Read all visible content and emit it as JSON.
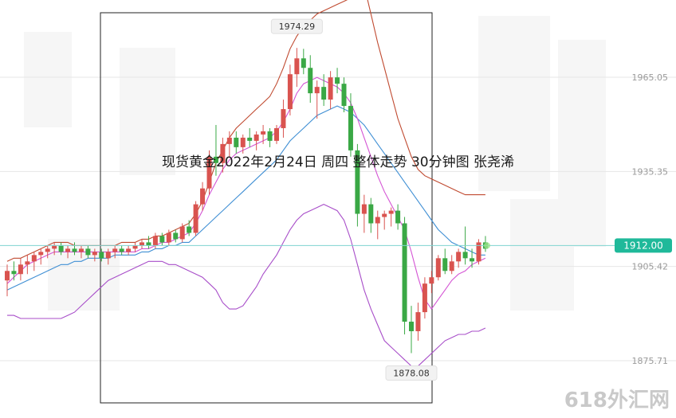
{
  "chart_data": {
    "type": "candlestick",
    "title": "现货黄金2022年2月24日 周四  整体走势 30分钟图  张尧浠",
    "ylim": [
      1868,
      1985
    ],
    "y_ticks": [
      {
        "value": 1965.05,
        "label": "1965.05"
      },
      {
        "value": 1935.35,
        "label": "1935.35"
      },
      {
        "value": 1905.42,
        "label": "1905.42"
      },
      {
        "value": 1875.71,
        "label": "1875.71"
      }
    ],
    "current_price": {
      "value": 1912.0,
      "label": "1912.00"
    },
    "annotations": [
      {
        "text": "1974.29",
        "value": 1974.29,
        "kind": "high"
      },
      {
        "text": "1878.08",
        "value": 1878.08,
        "kind": "low"
      }
    ],
    "candles": [
      {
        "o": 1901,
        "h": 1906,
        "l": 1896,
        "c": 1904
      },
      {
        "o": 1904,
        "h": 1907,
        "l": 1901,
        "c": 1903
      },
      {
        "o": 1903,
        "h": 1908,
        "l": 1901,
        "c": 1906
      },
      {
        "o": 1906,
        "h": 1909,
        "l": 1903,
        "c": 1907
      },
      {
        "o": 1907,
        "h": 1910,
        "l": 1904,
        "c": 1909
      },
      {
        "o": 1909,
        "h": 1911,
        "l": 1906,
        "c": 1910
      },
      {
        "o": 1910,
        "h": 1912,
        "l": 1908,
        "c": 1911
      },
      {
        "o": 1911,
        "h": 1913,
        "l": 1909,
        "c": 1912
      },
      {
        "o": 1912,
        "h": 1913,
        "l": 1909,
        "c": 1910
      },
      {
        "o": 1910,
        "h": 1912,
        "l": 1908,
        "c": 1911
      },
      {
        "o": 1911,
        "h": 1913,
        "l": 1909,
        "c": 1910
      },
      {
        "o": 1910,
        "h": 1912,
        "l": 1908,
        "c": 1911
      },
      {
        "o": 1911,
        "h": 1912,
        "l": 1908,
        "c": 1909
      },
      {
        "o": 1909,
        "h": 1911,
        "l": 1907,
        "c": 1910
      },
      {
        "o": 1910,
        "h": 1911,
        "l": 1907,
        "c": 1908
      },
      {
        "o": 1908,
        "h": 1911,
        "l": 1906,
        "c": 1910
      },
      {
        "o": 1910,
        "h": 1912,
        "l": 1908,
        "c": 1911
      },
      {
        "o": 1911,
        "h": 1912,
        "l": 1909,
        "c": 1910
      },
      {
        "o": 1910,
        "h": 1912,
        "l": 1909,
        "c": 1911
      },
      {
        "o": 1911,
        "h": 1913,
        "l": 1910,
        "c": 1912
      },
      {
        "o": 1912,
        "h": 1914,
        "l": 1911,
        "c": 1913
      },
      {
        "o": 1913,
        "h": 1915,
        "l": 1911,
        "c": 1912
      },
      {
        "o": 1912,
        "h": 1916,
        "l": 1911,
        "c": 1915
      },
      {
        "o": 1915,
        "h": 1916,
        "l": 1912,
        "c": 1913
      },
      {
        "o": 1913,
        "h": 1917,
        "l": 1912,
        "c": 1916
      },
      {
        "o": 1916,
        "h": 1917,
        "l": 1913,
        "c": 1914
      },
      {
        "o": 1914,
        "h": 1919,
        "l": 1913,
        "c": 1918
      },
      {
        "o": 1918,
        "h": 1920,
        "l": 1915,
        "c": 1916
      },
      {
        "o": 1916,
        "h": 1926,
        "l": 1915,
        "c": 1925
      },
      {
        "o": 1925,
        "h": 1932,
        "l": 1923,
        "c": 1930
      },
      {
        "o": 1930,
        "h": 1942,
        "l": 1928,
        "c": 1940
      },
      {
        "o": 1940,
        "h": 1950,
        "l": 1934,
        "c": 1938
      },
      {
        "o": 1938,
        "h": 1946,
        "l": 1935,
        "c": 1944
      },
      {
        "o": 1944,
        "h": 1948,
        "l": 1940,
        "c": 1946
      },
      {
        "o": 1946,
        "h": 1948,
        "l": 1941,
        "c": 1943
      },
      {
        "o": 1943,
        "h": 1947,
        "l": 1941,
        "c": 1946
      },
      {
        "o": 1946,
        "h": 1949,
        "l": 1943,
        "c": 1945
      },
      {
        "o": 1945,
        "h": 1948,
        "l": 1942,
        "c": 1947
      },
      {
        "o": 1947,
        "h": 1950,
        "l": 1944,
        "c": 1948
      },
      {
        "o": 1948,
        "h": 1949,
        "l": 1943,
        "c": 1945
      },
      {
        "o": 1945,
        "h": 1950,
        "l": 1944,
        "c": 1949
      },
      {
        "o": 1949,
        "h": 1958,
        "l": 1946,
        "c": 1955
      },
      {
        "o": 1955,
        "h": 1969,
        "l": 1953,
        "c": 1966
      },
      {
        "o": 1966,
        "h": 1974.29,
        "l": 1962,
        "c": 1971
      },
      {
        "o": 1971,
        "h": 1974,
        "l": 1966,
        "c": 1968
      },
      {
        "o": 1968,
        "h": 1972,
        "l": 1957,
        "c": 1960
      },
      {
        "o": 1960,
        "h": 1964,
        "l": 1952,
        "c": 1962
      },
      {
        "o": 1962,
        "h": 1966,
        "l": 1956,
        "c": 1958
      },
      {
        "o": 1958,
        "h": 1967,
        "l": 1955,
        "c": 1965
      },
      {
        "o": 1965,
        "h": 1968,
        "l": 1960,
        "c": 1963
      },
      {
        "o": 1963,
        "h": 1965,
        "l": 1954,
        "c": 1956
      },
      {
        "o": 1956,
        "h": 1960,
        "l": 1940,
        "c": 1942
      },
      {
        "o": 1942,
        "h": 1944,
        "l": 1918,
        "c": 1922
      },
      {
        "o": 1922,
        "h": 1928,
        "l": 1916,
        "c": 1925
      },
      {
        "o": 1925,
        "h": 1927,
        "l": 1916,
        "c": 1919
      },
      {
        "o": 1919,
        "h": 1923,
        "l": 1914,
        "c": 1921
      },
      {
        "o": 1921,
        "h": 1923,
        "l": 1917,
        "c": 1922
      },
      {
        "o": 1922,
        "h": 1924,
        "l": 1918,
        "c": 1923
      },
      {
        "o": 1923,
        "h": 1925,
        "l": 1917,
        "c": 1919
      },
      {
        "o": 1919,
        "h": 1921,
        "l": 1884,
        "c": 1888
      },
      {
        "o": 1888,
        "h": 1893,
        "l": 1878.08,
        "c": 1885
      },
      {
        "o": 1885,
        "h": 1894,
        "l": 1882,
        "c": 1891
      },
      {
        "o": 1891,
        "h": 1902,
        "l": 1889,
        "c": 1900
      },
      {
        "o": 1900,
        "h": 1904,
        "l": 1897,
        "c": 1902
      },
      {
        "o": 1902,
        "h": 1909,
        "l": 1901,
        "c": 1908
      },
      {
        "o": 1908,
        "h": 1911,
        "l": 1903,
        "c": 1904
      },
      {
        "o": 1904,
        "h": 1909,
        "l": 1903,
        "c": 1907
      },
      {
        "o": 1907,
        "h": 1911,
        "l": 1905,
        "c": 1910
      },
      {
        "o": 1910,
        "h": 1918,
        "l": 1906,
        "c": 1908
      },
      {
        "o": 1908,
        "h": 1911,
        "l": 1905,
        "c": 1907
      },
      {
        "o": 1907,
        "h": 1914,
        "l": 1906,
        "c": 1913
      },
      {
        "o": 1913,
        "h": 1915,
        "l": 1910,
        "c": 1911
      }
    ],
    "lines": [
      {
        "name": "upper",
        "color": "#c04a30",
        "values": [
          1907,
          1908,
          1908,
          1909,
          1910,
          1911,
          1912,
          1913,
          1913,
          1913,
          1912,
          1912,
          1912,
          1912,
          1912,
          1912,
          1912,
          1913,
          1913,
          1913,
          1914,
          1914,
          1915,
          1915,
          1916,
          1917,
          1918,
          1919,
          1922,
          1926,
          1932,
          1938,
          1942,
          1946,
          1949,
          1951,
          1953,
          1955,
          1957,
          1959,
          1963,
          1968,
          1974,
          1978,
          1981,
          1983,
          1985,
          1986,
          1987,
          1988,
          1989,
          1990,
          1991,
          1994,
          1985,
          1976,
          1968,
          1960,
          1952,
          1946,
          1940,
          1936,
          1934,
          1933,
          1932,
          1931,
          1930,
          1929,
          1928,
          1928,
          1928,
          1928
        ]
      },
      {
        "name": "mid",
        "color": "#3f8fd4",
        "values": [
          1898,
          1899,
          1900,
          1901,
          1902,
          1903,
          1904,
          1905,
          1906,
          1906,
          1907,
          1907,
          1908,
          1908,
          1908,
          1908,
          1909,
          1909,
          1909,
          1909,
          1910,
          1910,
          1911,
          1911,
          1912,
          1912,
          1913,
          1913,
          1915,
          1917,
          1919,
          1921,
          1923,
          1925,
          1927,
          1929,
          1931,
          1933,
          1935,
          1937,
          1939,
          1942,
          1945,
          1947,
          1949,
          1951,
          1953,
          1954,
          1955,
          1956,
          1955,
          1954,
          1952,
          1950,
          1947,
          1944,
          1941,
          1938,
          1935,
          1932,
          1929,
          1926,
          1923,
          1920,
          1917,
          1915,
          1913,
          1912,
          1911,
          1910,
          1909,
          1909
        ]
      },
      {
        "name": "ma",
        "color": "#d454d4",
        "values": [
          1900,
          1902,
          1904,
          1906,
          1907,
          1908,
          1909,
          1910,
          1910,
          1910,
          1910,
          1910,
          1910,
          1910,
          1910,
          1910,
          1910,
          1910,
          1910,
          1910,
          1911,
          1911,
          1912,
          1913,
          1913,
          1914,
          1915,
          1916,
          1919,
          1923,
          1928,
          1932,
          1936,
          1939,
          1941,
          1942,
          1943,
          1944,
          1945,
          1946,
          1948,
          1951,
          1955,
          1960,
          1963,
          1964,
          1965,
          1964,
          1963,
          1962,
          1960,
          1957,
          1952,
          1946,
          1940,
          1934,
          1929,
          1925,
          1921,
          1917,
          1910,
          1902,
          1895,
          1892,
          1895,
          1898,
          1901,
          1903,
          1904,
          1906,
          1907,
          1908
        ]
      },
      {
        "name": "lower",
        "color": "#a84ec9",
        "values": [
          1890,
          1890,
          1889,
          1889,
          1889,
          1889,
          1889,
          1889,
          1889,
          1890,
          1891,
          1893,
          1895,
          1897,
          1899,
          1901,
          1902,
          1903,
          1904,
          1905,
          1906,
          1907,
          1907,
          1907,
          1906,
          1906,
          1905,
          1904,
          1903,
          1902,
          1900,
          1898,
          1894,
          1892,
          1892,
          1893,
          1896,
          1899,
          1903,
          1906,
          1909,
          1913,
          1917,
          1920,
          1922,
          1923,
          1924,
          1925,
          1924,
          1923,
          1920,
          1914,
          1906,
          1898,
          1892,
          1887,
          1882,
          1880,
          1878,
          1876,
          1874,
          1874,
          1876,
          1878,
          1880,
          1882,
          1883,
          1884,
          1884,
          1885,
          1885,
          1886
        ]
      }
    ]
  },
  "branding": {
    "watermark": "618外汇网"
  }
}
